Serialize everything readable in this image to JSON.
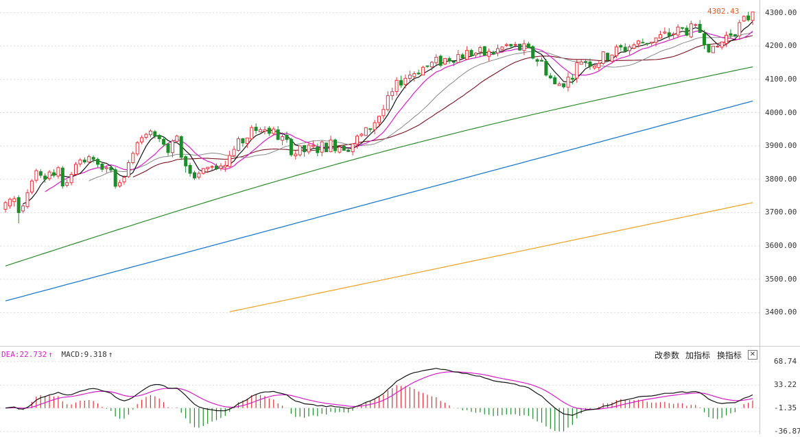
{
  "chart_data": [
    {
      "type": "candlestick",
      "y_axis_ticks": [
        "4300.00",
        "4200.00",
        "4100.00",
        "4000.00",
        "3900.00",
        "3800.00",
        "3700.00",
        "3600.00",
        "3500.00",
        "3400.00"
      ],
      "ylim": [
        3300,
        4330
      ],
      "grid": true,
      "last_price_label": "4302.43",
      "candles": [
        [
          3710,
          3730,
          3700,
          3735
        ],
        [
          3720,
          3740,
          3712,
          3745
        ],
        [
          3733,
          3742,
          3718,
          3750
        ],
        [
          3745,
          3700,
          3668,
          3752
        ],
        [
          3705,
          3720,
          3698,
          3728
        ],
        [
          3718,
          3760,
          3712,
          3770
        ],
        [
          3762,
          3795,
          3755,
          3800
        ],
        [
          3797,
          3826,
          3790,
          3832
        ],
        [
          3823,
          3812,
          3804,
          3830
        ],
        [
          3810,
          3800,
          3790,
          3818
        ],
        [
          3802,
          3822,
          3796,
          3828
        ],
        [
          3820,
          3812,
          3806,
          3830
        ],
        [
          3810,
          3835,
          3802,
          3840
        ],
        [
          3834,
          3780,
          3772,
          3840
        ],
        [
          3782,
          3790,
          3776,
          3800
        ],
        [
          3790,
          3815,
          3782,
          3822
        ],
        [
          3815,
          3845,
          3810,
          3852
        ],
        [
          3846,
          3858,
          3838,
          3864
        ],
        [
          3858,
          3852,
          3846,
          3866
        ],
        [
          3852,
          3868,
          3846,
          3874
        ],
        [
          3866,
          3860,
          3850,
          3872
        ],
        [
          3860,
          3845,
          3836,
          3865
        ],
        [
          3846,
          3830,
          3822,
          3852
        ],
        [
          3832,
          3835,
          3820,
          3842
        ],
        [
          3836,
          3828,
          3820,
          3842
        ],
        [
          3829,
          3779,
          3772,
          3836
        ],
        [
          3780,
          3790,
          3775,
          3798
        ],
        [
          3792,
          3806,
          3784,
          3812
        ],
        [
          3808,
          3850,
          3804,
          3858
        ],
        [
          3850,
          3878,
          3845,
          3884
        ],
        [
          3876,
          3910,
          3870,
          3915
        ],
        [
          3912,
          3925,
          3905,
          3932
        ],
        [
          3926,
          3935,
          3920,
          3940
        ],
        [
          3934,
          3945,
          3926,
          3950
        ],
        [
          3943,
          3930,
          3922,
          3948
        ],
        [
          3932,
          3922,
          3912,
          3936
        ],
        [
          3920,
          3905,
          3898,
          3928
        ],
        [
          3906,
          3880,
          3870,
          3910
        ],
        [
          3880,
          3915,
          3866,
          3920
        ],
        [
          3914,
          3930,
          3908,
          3934
        ],
        [
          3928,
          3866,
          3858,
          3932
        ],
        [
          3868,
          3840,
          3820,
          3872
        ],
        [
          3842,
          3818,
          3808,
          3850
        ],
        [
          3820,
          3804,
          3798,
          3826
        ],
        [
          3806,
          3818,
          3800,
          3825
        ]
      ],
      "note_ma": "moving averages drawn from closes; long MAs extrapolated",
      "series": []
    },
    {
      "type": "macd",
      "header": {
        "dea_label": "DEA:22.732",
        "dea_arrow": "↑",
        "macd_label": "MACD:9.318",
        "macd_arrow": "↑"
      },
      "y_axis_ticks": [
        "68.74",
        "33.22",
        "-1.35",
        "-36.87"
      ],
      "ylim": [
        -36.87,
        68.74
      ]
    }
  ],
  "toolbar": {
    "change_params": "改参数",
    "add_indicator": "加指标",
    "switch_indicator": "换指标",
    "close": "✕"
  },
  "colors": {
    "up": "#e0323a",
    "down": "#1e8c2a",
    "ma5": "#111111",
    "ma10": "#d61cc8",
    "ma20": "#888888",
    "ma30": "#7a1020",
    "ma60": "#2a8a2a",
    "ma120": "#1a7ad0",
    "ma250": "#f0a020",
    "dea": "#d61cc8",
    "macd_line": "#111111",
    "grid": "#d9d9d9",
    "axis": "#c8c8c8"
  }
}
